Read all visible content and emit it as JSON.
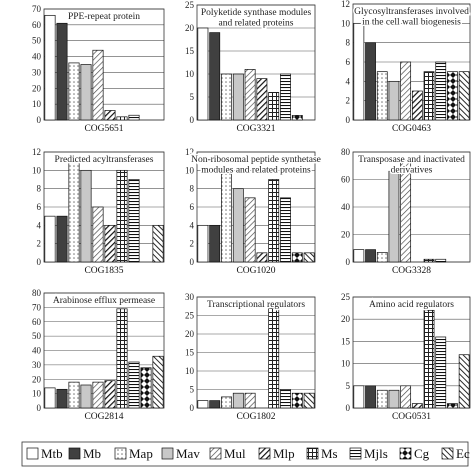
{
  "series_names": [
    "Mtb",
    "Mb",
    "Map",
    "Mav",
    "Mul",
    "Mlp",
    "Ms",
    "Mjls",
    "Cg",
    "Ec"
  ],
  "chart_data": [
    {
      "type": "bar",
      "title_lines": [
        "PPE-repeat protein"
      ],
      "xlabel": "COG5651",
      "ylim": [
        0,
        70
      ],
      "yticks": [
        0,
        10,
        20,
        30,
        40,
        50,
        60,
        70
      ],
      "values": [
        66,
        61,
        36,
        35,
        44,
        6,
        2,
        3,
        0,
        0
      ]
    },
    {
      "type": "bar",
      "title_lines": [
        "Polyketide synthase modules",
        "and related proteins"
      ],
      "xlabel": "COG3321",
      "ylim": [
        0,
        25
      ],
      "yticks": [
        0,
        5,
        10,
        15,
        20,
        25
      ],
      "values": [
        20,
        19,
        10,
        10,
        11,
        9,
        6,
        10,
        1,
        0
      ]
    },
    {
      "type": "bar",
      "title_lines": [
        "Glycosyltransferases involved",
        "in the cell wall biogenesis"
      ],
      "xlabel": "COG0463",
      "ylim": [
        0,
        12
      ],
      "yticks": [
        0,
        2,
        4,
        6,
        8,
        10,
        12
      ],
      "values": [
        10,
        8,
        5,
        4,
        6,
        3,
        5,
        6,
        5,
        5
      ]
    },
    {
      "type": "bar",
      "title_lines": [
        "Predicted acyltransferases"
      ],
      "xlabel": "COG1835",
      "ylim": [
        0,
        12
      ],
      "yticks": [
        0,
        2,
        4,
        6,
        8,
        10,
        12
      ],
      "values": [
        5,
        5,
        11,
        10,
        6,
        4,
        10,
        9,
        0,
        4
      ]
    },
    {
      "type": "bar",
      "title_lines": [
        "Non-ribosomal peptide synthetase",
        "modules and related proteins"
      ],
      "xlabel": "COG1020",
      "ylim": [
        0,
        12
      ],
      "yticks": [
        0,
        2,
        4,
        6,
        8,
        10,
        12
      ],
      "values": [
        4,
        4,
        10,
        8,
        7,
        1,
        9,
        7,
        1,
        1
      ]
    },
    {
      "type": "bar",
      "title_lines": [
        "Transposase and inactivated",
        "derivatives"
      ],
      "xlabel": "COG3328",
      "ylim": [
        0,
        80
      ],
      "yticks": [
        0,
        20,
        40,
        60,
        80
      ],
      "values": [
        9,
        9,
        7,
        66,
        74,
        0,
        2,
        2,
        0,
        0
      ]
    },
    {
      "type": "bar",
      "title_lines": [
        "Arabinose efflux permease"
      ],
      "xlabel": "COG2814",
      "ylim": [
        0,
        80
      ],
      "yticks": [
        0,
        10,
        20,
        30,
        40,
        50,
        60,
        70,
        80
      ],
      "values": [
        14,
        13,
        18,
        16,
        18,
        19,
        69,
        32,
        28,
        36
      ]
    },
    {
      "type": "bar",
      "title_lines": [
        "Transcriptional regulators"
      ],
      "xlabel": "COG1802",
      "ylim": [
        0,
        30
      ],
      "yticks": [
        0,
        5,
        10,
        15,
        20,
        25,
        30
      ],
      "values": [
        2,
        2,
        3,
        4,
        4,
        0,
        27,
        5,
        4,
        4
      ]
    },
    {
      "type": "bar",
      "title_lines": [
        "Amino acid regulators"
      ],
      "xlabel": "COG0531",
      "ylim": [
        0,
        25
      ],
      "yticks": [
        0,
        5,
        10,
        15,
        20,
        25
      ],
      "values": [
        5,
        5,
        4,
        4,
        5,
        1,
        22,
        16,
        1,
        12
      ]
    }
  ]
}
